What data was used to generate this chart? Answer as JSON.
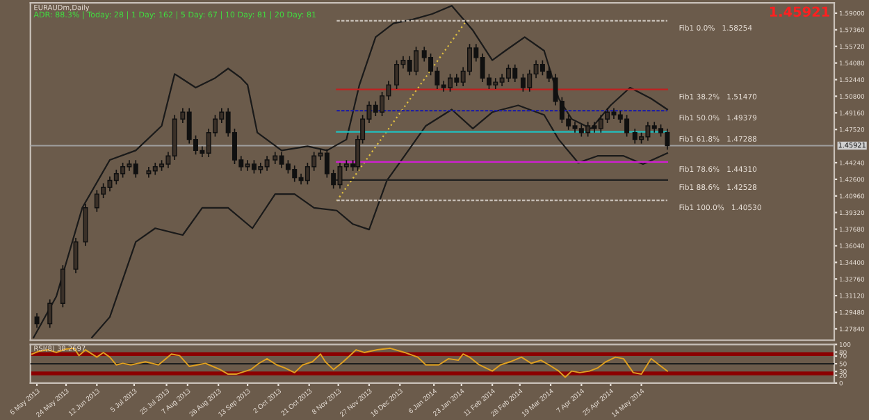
{
  "chart_data": [
    {
      "type": "candlestick",
      "title": "EURAUDm,Daily",
      "subtitle": "ADR: 88.3% | Today: 28 | 1 Day: 162 | 5 Day: 67 | 10 Day: 81 | 20 Day: 81",
      "x": [
        "2013-05-06",
        "2013-05-14",
        "2013-05-22",
        "2013-05-30",
        "2013-06-05",
        "2013-06-12",
        "2013-06-16",
        "2013-06-20",
        "2013-06-24",
        "2013-06-28",
        "2013-07-02",
        "2013-07-06",
        "2013-07-14",
        "2013-07-18",
        "2013-07-22",
        "2013-07-26",
        "2013-07-30",
        "2013-08-04",
        "2013-08-08",
        "2013-08-12",
        "2013-08-16",
        "2013-08-20",
        "2013-08-24",
        "2013-08-28",
        "2013-09-01",
        "2013-09-05",
        "2013-09-09",
        "2013-09-13",
        "2013-09-17",
        "2013-09-21",
        "2013-09-25",
        "2013-09-30",
        "2013-10-04",
        "2013-10-08",
        "2013-10-12",
        "2013-10-16",
        "2013-10-20",
        "2013-10-24",
        "2013-10-28",
        "2013-11-01",
        "2013-11-05",
        "2013-11-09",
        "2013-11-13",
        "2013-11-17",
        "2013-11-20",
        "2013-11-23",
        "2013-11-27",
        "2013-12-01",
        "2013-12-05",
        "2013-12-09",
        "2013-12-14",
        "2013-12-18",
        "2013-12-22",
        "2013-12-26",
        "2013-12-31",
        "2014-01-04",
        "2014-01-08",
        "2014-01-12",
        "2014-01-16",
        "2014-01-20",
        "2014-01-24",
        "2014-01-28",
        "2014-02-01",
        "2014-02-05",
        "2014-02-09",
        "2014-02-13",
        "2014-02-17",
        "2014-02-21",
        "2014-02-25",
        "2014-03-02",
        "2014-03-06",
        "2014-03-10",
        "2014-03-14",
        "2014-03-18",
        "2014-03-22",
        "2014-03-26",
        "2014-03-30",
        "2014-04-03",
        "2014-04-07",
        "2014-04-11",
        "2014-04-15",
        "2014-04-19",
        "2014-04-23",
        "2014-04-27",
        "2014-05-01",
        "2014-05-05",
        "2014-05-10",
        "2014-05-14",
        "2014-05-18",
        "2014-05-22",
        "2014-05-26",
        "2014-05-30"
      ],
      "ohlc": [
        [
          1.29,
          1.294,
          1.2794,
          1.2834
        ],
        [
          1.2834,
          1.3076,
          1.2794,
          1.3036
        ],
        [
          1.3036,
          1.3413,
          1.2996,
          1.3373
        ],
        [
          1.3373,
          1.3682,
          1.3333,
          1.3642
        ],
        [
          1.3642,
          1.4019,
          1.3602,
          1.3979
        ],
        [
          1.3979,
          1.4154,
          1.3939,
          1.4114
        ],
        [
          1.4114,
          1.4221,
          1.4074,
          1.4181
        ],
        [
          1.4181,
          1.4289,
          1.4141,
          1.4249
        ],
        [
          1.4249,
          1.4356,
          1.4209,
          1.4316
        ],
        [
          1.4316,
          1.4424,
          1.4276,
          1.4384
        ],
        [
          1.4384,
          1.445,
          1.4344,
          1.441
        ],
        [
          1.441,
          1.445,
          1.4276,
          1.4316
        ],
        [
          1.4316,
          1.4383,
          1.4276,
          1.4343
        ],
        [
          1.4343,
          1.4424,
          1.4303,
          1.4384
        ],
        [
          1.4384,
          1.445,
          1.4344,
          1.441
        ],
        [
          1.441,
          1.4531,
          1.437,
          1.4491
        ],
        [
          1.4491,
          1.4895,
          1.4451,
          1.4855
        ],
        [
          1.4855,
          1.4963,
          1.4815,
          1.4923
        ],
        [
          1.4923,
          1.4963,
          1.4613,
          1.4653
        ],
        [
          1.4653,
          1.4693,
          1.4505,
          1.4545
        ],
        [
          1.4545,
          1.4585,
          1.4478,
          1.4518
        ],
        [
          1.4518,
          1.4761,
          1.4478,
          1.4721
        ],
        [
          1.4721,
          1.4895,
          1.4681,
          1.4855
        ],
        [
          1.4855,
          1.4963,
          1.4815,
          1.4923
        ],
        [
          1.4923,
          1.4963,
          1.4681,
          1.4721
        ],
        [
          1.4721,
          1.4761,
          1.4411,
          1.4451
        ],
        [
          1.4451,
          1.4491,
          1.4344,
          1.4384
        ],
        [
          1.4384,
          1.445,
          1.4344,
          1.441
        ],
        [
          1.441,
          1.445,
          1.4317,
          1.4357
        ],
        [
          1.4357,
          1.4424,
          1.4317,
          1.4384
        ],
        [
          1.4384,
          1.4491,
          1.4344,
          1.4451
        ],
        [
          1.4451,
          1.4531,
          1.4411,
          1.4491
        ],
        [
          1.4491,
          1.4531,
          1.437,
          1.441
        ],
        [
          1.441,
          1.445,
          1.4317,
          1.4357
        ],
        [
          1.4357,
          1.4397,
          1.4236,
          1.4276
        ],
        [
          1.4276,
          1.4316,
          1.4209,
          1.4249
        ],
        [
          1.4249,
          1.4424,
          1.4209,
          1.4384
        ],
        [
          1.4384,
          1.4531,
          1.4344,
          1.4491
        ],
        [
          1.4491,
          1.4558,
          1.4451,
          1.4518
        ],
        [
          1.4518,
          1.4558,
          1.4276,
          1.4316
        ],
        [
          1.4316,
          1.4356,
          1.4168,
          1.4208
        ],
        [
          1.4208,
          1.4424,
          1.4168,
          1.4384
        ],
        [
          1.4384,
          1.445,
          1.4344,
          1.441
        ],
        [
          1.441,
          1.445,
          1.4344,
          1.4384
        ],
        [
          1.4384,
          1.4693,
          1.4344,
          1.4653
        ],
        [
          1.4653,
          1.4895,
          1.4613,
          1.4855
        ],
        [
          1.4855,
          1.503,
          1.4815,
          1.499
        ],
        [
          1.499,
          1.503,
          1.4883,
          1.4923
        ],
        [
          1.4923,
          1.5124,
          1.4883,
          1.5084
        ],
        [
          1.5084,
          1.5232,
          1.5044,
          1.5192
        ],
        [
          1.5192,
          1.5434,
          1.5152,
          1.5394
        ],
        [
          1.5394,
          1.5475,
          1.5354,
          1.5435
        ],
        [
          1.5435,
          1.5475,
          1.5287,
          1.5327
        ],
        [
          1.5327,
          1.5569,
          1.5287,
          1.5529
        ],
        [
          1.5529,
          1.5569,
          1.5422,
          1.5462
        ],
        [
          1.5462,
          1.5502,
          1.5287,
          1.5327
        ],
        [
          1.5327,
          1.5367,
          1.5152,
          1.5192
        ],
        [
          1.5192,
          1.5232,
          1.5125,
          1.5165
        ],
        [
          1.5165,
          1.53,
          1.5125,
          1.526
        ],
        [
          1.526,
          1.53,
          1.5179,
          1.5219
        ],
        [
          1.5219,
          1.5367,
          1.5179,
          1.5327
        ],
        [
          1.5327,
          1.5596,
          1.5287,
          1.5556
        ],
        [
          1.5556,
          1.5596,
          1.5422,
          1.5462
        ],
        [
          1.5462,
          1.5502,
          1.522,
          1.526
        ],
        [
          1.526,
          1.53,
          1.5152,
          1.5192
        ],
        [
          1.5192,
          1.5259,
          1.5152,
          1.5219
        ],
        [
          1.5219,
          1.53,
          1.5179,
          1.526
        ],
        [
          1.526,
          1.5394,
          1.522,
          1.5354
        ],
        [
          1.5354,
          1.5394,
          1.522,
          1.526
        ],
        [
          1.526,
          1.53,
          1.5125,
          1.5165
        ],
        [
          1.5165,
          1.534,
          1.5125,
          1.53
        ],
        [
          1.53,
          1.5434,
          1.526,
          1.5394
        ],
        [
          1.5394,
          1.5434,
          1.5287,
          1.5327
        ],
        [
          1.5327,
          1.5367,
          1.522,
          1.526
        ],
        [
          1.526,
          1.53,
          1.499,
          1.503
        ],
        [
          1.503,
          1.507,
          1.4815,
          1.4855
        ],
        [
          1.4855,
          1.4895,
          1.4748,
          1.4788
        ],
        [
          1.4788,
          1.4828,
          1.4721,
          1.4761
        ],
        [
          1.4761,
          1.4801,
          1.4681,
          1.4721
        ],
        [
          1.4721,
          1.4828,
          1.4681,
          1.4788
        ],
        [
          1.4788,
          1.4828,
          1.4721,
          1.4761
        ],
        [
          1.4761,
          1.4895,
          1.4721,
          1.4855
        ],
        [
          1.4855,
          1.4963,
          1.4815,
          1.4923
        ],
        [
          1.4923,
          1.4963,
          1.4856,
          1.4896
        ],
        [
          1.4896,
          1.4936,
          1.4815,
          1.4855
        ],
        [
          1.4855,
          1.4895,
          1.4681,
          1.4721
        ],
        [
          1.4721,
          1.4761,
          1.4613,
          1.4653
        ],
        [
          1.4653,
          1.472,
          1.4613,
          1.468
        ],
        [
          1.468,
          1.4828,
          1.464,
          1.4788
        ],
        [
          1.4788,
          1.4828,
          1.4721,
          1.4761
        ],
        [
          1.4761,
          1.4801,
          1.4681,
          1.4721
        ],
        [
          1.4721,
          1.4761,
          1.4552,
          1.4592
        ]
      ],
      "series": [
        {
          "type": "line",
          "color": "#1a1a1a",
          "x": [
            "2013-05-04",
            "2013-05-18",
            "2013-06-03",
            "2013-06-20",
            "2013-07-06",
            "2013-07-22",
            "2013-07-30",
            "2013-08-12",
            "2013-08-24",
            "2013-09-01",
            "2013-09-09",
            "2013-09-13",
            "2013-09-19",
            "2013-10-04",
            "2013-10-20",
            "2013-11-01",
            "2013-11-13",
            "2013-11-21",
            "2013-12-01",
            "2013-12-12",
            "2013-12-24",
            "2014-01-05",
            "2014-01-17",
            "2014-01-30",
            "2014-02-11",
            "2014-02-19",
            "2014-03-03",
            "2014-03-15",
            "2014-03-24",
            "2014-04-01",
            "2014-04-13",
            "2014-04-25",
            "2014-05-07",
            "2014-05-20",
            "2014-05-30"
          ],
          "values": [
            1.2699,
            1.3104,
            1.3979,
            1.4451,
            1.4545,
            1.4788,
            1.53,
            1.5165,
            1.526,
            1.5354,
            1.526,
            1.5192,
            1.4721,
            1.4545,
            1.4586,
            1.4545,
            1.4653,
            1.5192,
            1.5664,
            1.5799,
            1.5839,
            1.5893,
            1.5974,
            1.5731,
            1.5435,
            1.5529,
            1.5664,
            1.5529,
            1.5057,
            1.4855,
            1.4761,
            1.499,
            1.5165,
            1.5057,
            1.495
          ]
        },
        {
          "type": "line",
          "color": "#1a1a1a",
          "x": [
            "2013-06-09",
            "2013-06-20",
            "2013-07-06",
            "2013-07-18",
            "2013-08-04",
            "2013-08-16",
            "2013-09-01",
            "2013-09-16",
            "2013-09-30",
            "2013-10-12",
            "2013-10-24",
            "2013-11-07",
            "2013-11-17",
            "2013-11-27",
            "2013-12-08",
            "2013-12-20",
            "2014-01-01",
            "2014-01-17",
            "2014-01-30",
            "2014-02-11",
            "2014-02-27",
            "2014-03-15",
            "2014-03-24",
            "2014-04-05",
            "2014-04-17",
            "2014-05-03",
            "2014-05-15",
            "2014-05-30"
          ],
          "values": [
            1.2699,
            1.2901,
            1.3642,
            1.3777,
            1.371,
            1.3979,
            1.3979,
            1.3777,
            1.4114,
            1.4114,
            1.3979,
            1.3952,
            1.3818,
            1.3764,
            1.4249,
            1.4518,
            1.4788,
            1.4949,
            1.4761,
            1.4923,
            1.499,
            1.4896,
            1.4653,
            1.4424,
            1.4491,
            1.4491,
            1.441,
            1.4518
          ]
        },
        {
          "type": "line",
          "color": "#e0c040",
          "line_style": "dotted",
          "x": [
            "2013-11-07",
            "2014-01-26"
          ],
          "values": [
            1.4047,
            1.5825
          ]
        },
        {
          "type": "line",
          "color": "#c8c0b8",
          "line_style": "dashed",
          "x": [
            "2013-11-07",
            "2014-05-30"
          ],
          "values": [
            1.58254,
            1.58254
          ]
        },
        {
          "type": "line",
          "color": "#c02020",
          "line_style": "solid",
          "x": [
            "2013-11-07",
            "2014-05-30"
          ],
          "values": [
            1.5147,
            1.5147
          ]
        },
        {
          "type": "line",
          "color": "#2020a0",
          "line_style": "dashed",
          "x": [
            "2013-11-07",
            "2014-05-30"
          ],
          "values": [
            1.4938,
            1.4938
          ]
        },
        {
          "type": "line",
          "color": "#20c0c0",
          "line_style": "solid",
          "x": [
            "2013-11-07",
            "2014-05-30"
          ],
          "values": [
            1.4729,
            1.4729
          ]
        },
        {
          "type": "line",
          "color": "#d020d0",
          "line_style": "solid",
          "x": [
            "2013-11-07",
            "2014-05-30"
          ],
          "values": [
            1.4431,
            1.4431
          ]
        },
        {
          "type": "line",
          "color": "#202020",
          "line_style": "solid",
          "x": [
            "2013-11-07",
            "2014-05-30"
          ],
          "values": [
            1.4253,
            1.4253
          ]
        },
        {
          "type": "line",
          "color": "#c8c0b8",
          "line_style": "dashed",
          "x": [
            "2013-11-07",
            "2014-05-30"
          ],
          "values": [
            1.4053,
            1.4053
          ]
        }
      ],
      "ref_lines": [
        {
          "axis": "y",
          "value": 1.45921,
          "label": "1.45921",
          "color": "#a0a0a0"
        }
      ],
      "annotations": [
        "1.45921",
        {
          "text": "Fib1 0.0%   1.58254",
          "x": "2014-05-30",
          "y": 1.58254
        },
        {
          "text": "Fib1 38.2%   1.51470",
          "x": "2014-05-30",
          "y": 1.5147
        },
        {
          "text": "Fib1 50.0%   1.49379",
          "x": "2014-05-30",
          "y": 1.4938
        },
        {
          "text": "Fib1 61.8%   1.47288",
          "x": "2014-05-30",
          "y": 1.4729
        },
        {
          "text": "Fib1 78.6%   1.44310",
          "x": "2014-05-30",
          "y": 1.4431
        },
        {
          "text": "Fib1 88.6%   1.42528",
          "x": "2014-05-30",
          "y": 1.4253
        },
        {
          "text": "Fib1 100.0%   1.40530",
          "x": "2014-05-30",
          "y": 1.4053
        }
      ],
      "xlim": [
        "2013-05-02",
        "2014-09-10"
      ],
      "ylim": [
        1.2672,
        1.6001
      ],
      "yticks": [
        {
          "value": 1.59,
          "label": "1.59000"
        },
        {
          "value": 1.5736,
          "label": "1.57360"
        },
        {
          "value": 1.5572,
          "label": "1.55720"
        },
        {
          "value": 1.5408,
          "label": "1.54080"
        },
        {
          "value": 1.5244,
          "label": "1.52440"
        },
        {
          "value": 1.508,
          "label": "1.50800"
        },
        {
          "value": 1.4916,
          "label": "1.49160"
        },
        {
          "value": 1.4752,
          "label": "1.47520"
        },
        {
          "value": 1.4424,
          "label": "1.44240"
        },
        {
          "value": 1.426,
          "label": "1.42600"
        },
        {
          "value": 1.4096,
          "label": "1.40960"
        },
        {
          "value": 1.3932,
          "label": "1.39320"
        },
        {
          "value": 1.3768,
          "label": "1.37680"
        },
        {
          "value": 1.3604,
          "label": "1.36040"
        },
        {
          "value": 1.344,
          "label": "1.34400"
        },
        {
          "value": 1.3276,
          "label": "1.32760"
        },
        {
          "value": 1.3112,
          "label": "1.31120"
        },
        {
          "value": 1.2948,
          "label": "1.29480"
        },
        {
          "value": 1.2784,
          "label": "1.27840"
        }
      ],
      "tick_labels": "y",
      "grid": false,
      "legend": false
    },
    {
      "type": "line",
      "title": "RSI(8) 38.2697",
      "color": "#e0a020",
      "x": [
        "2013-05-03",
        "2013-05-07",
        "2013-05-13",
        "2013-05-18",
        "2013-05-24",
        "2013-05-29",
        "2013-06-01",
        "2013-06-05",
        "2013-06-12",
        "2013-06-16",
        "2013-06-20",
        "2013-06-24",
        "2013-06-28",
        "2013-07-03",
        "2013-07-12",
        "2013-07-20",
        "2013-07-28",
        "2013-08-02",
        "2013-08-08",
        "2013-08-13",
        "2013-08-18",
        "2013-08-27",
        "2013-09-01",
        "2013-09-06",
        "2013-09-15",
        "2013-09-20",
        "2013-09-25",
        "2013-10-01",
        "2013-10-06",
        "2013-10-12",
        "2013-10-17",
        "2013-10-23",
        "2013-10-28",
        "2013-10-31",
        "2013-11-05",
        "2013-11-11",
        "2013-11-19",
        "2013-11-24",
        "2013-12-02",
        "2013-12-10",
        "2013-12-19",
        "2013-12-27",
        "2014-01-01",
        "2014-01-09",
        "2014-01-15",
        "2014-01-21",
        "2014-01-24",
        "2014-01-28",
        "2014-02-03",
        "2014-02-11",
        "2014-02-16",
        "2014-02-22",
        "2014-03-01",
        "2014-03-07",
        "2014-03-13",
        "2014-03-18",
        "2014-03-24",
        "2014-03-28",
        "2014-04-01",
        "2014-04-06",
        "2014-04-12",
        "2014-04-17",
        "2014-04-22",
        "2014-04-28",
        "2014-05-03",
        "2014-05-09",
        "2014-05-14",
        "2014-05-20",
        "2014-05-25",
        "2014-05-30"
      ],
      "values": [
        75,
        82,
        86,
        79,
        88,
        90,
        71,
        86,
        67,
        79,
        67,
        47,
        51,
        47,
        55,
        47,
        75,
        71,
        43,
        47,
        51,
        35,
        23,
        23,
        35,
        51,
        63,
        47,
        39,
        27,
        47,
        55,
        75,
        55,
        35,
        55,
        86,
        79,
        86,
        90,
        79,
        67,
        47,
        47,
        63,
        59,
        75,
        67,
        47,
        31,
        47,
        55,
        67,
        51,
        59,
        47,
        31,
        15,
        31,
        27,
        31,
        39,
        55,
        67,
        63,
        27,
        23,
        63,
        47,
        31
      ],
      "bands": [
        {
          "axis": "y",
          "from": 70,
          "to": 80,
          "color": "#8b0000"
        },
        {
          "axis": "y",
          "from": 20,
          "to": 30,
          "color": "#8b0000"
        }
      ],
      "ref_lines": [
        {
          "axis": "y",
          "value": 50,
          "color": "#202020"
        }
      ],
      "xlim": [
        "2013-05-02",
        "2014-09-10"
      ],
      "ylim": [
        0,
        100
      ],
      "yticks": [
        0,
        20,
        30,
        50,
        70,
        80,
        100
      ],
      "xticks": [
        {
          "value": "2013-05-06",
          "label": "6 May 2013"
        },
        {
          "value": "2013-05-24",
          "label": "24 May 2013"
        },
        {
          "value": "2013-06-12",
          "label": "12 Jun 2013"
        },
        {
          "value": "2013-07-05",
          "label": "5 Jul 2013"
        },
        {
          "value": "2013-07-25",
          "label": "25 Jul 2013"
        },
        {
          "value": "2013-08-07",
          "label": "7 Aug 2013"
        },
        {
          "value": "2013-08-26",
          "label": "26 Aug 2013"
        },
        {
          "value": "2013-09-13",
          "label": "13 Sep 2013"
        },
        {
          "value": "2013-10-02",
          "label": "2 Oct 2013"
        },
        {
          "value": "2013-10-21",
          "label": "21 Oct 2013"
        },
        {
          "value": "2013-11-08",
          "label": "8 Nov 2013"
        },
        {
          "value": "2013-11-27",
          "label": "27 Nov 2013"
        },
        {
          "value": "2013-12-16",
          "label": "16 Dec 2013"
        },
        {
          "value": "2014-01-06",
          "label": "6 Jan 2014"
        },
        {
          "value": "2014-01-23",
          "label": "23 Jan 2014"
        },
        {
          "value": "2014-02-11",
          "label": "11 Feb 2014"
        },
        {
          "value": "2014-02-28",
          "label": "28 Feb 2014"
        },
        {
          "value": "2014-03-19",
          "label": "19 Mar 2014"
        },
        {
          "value": "2014-04-07",
          "label": "7 Apr 2014"
        },
        {
          "value": "2014-04-25",
          "label": "25 Apr 2014"
        },
        {
          "value": "2014-05-14",
          "label": "14 May 2014"
        }
      ],
      "grid": false,
      "legend": false
    }
  ]
}
